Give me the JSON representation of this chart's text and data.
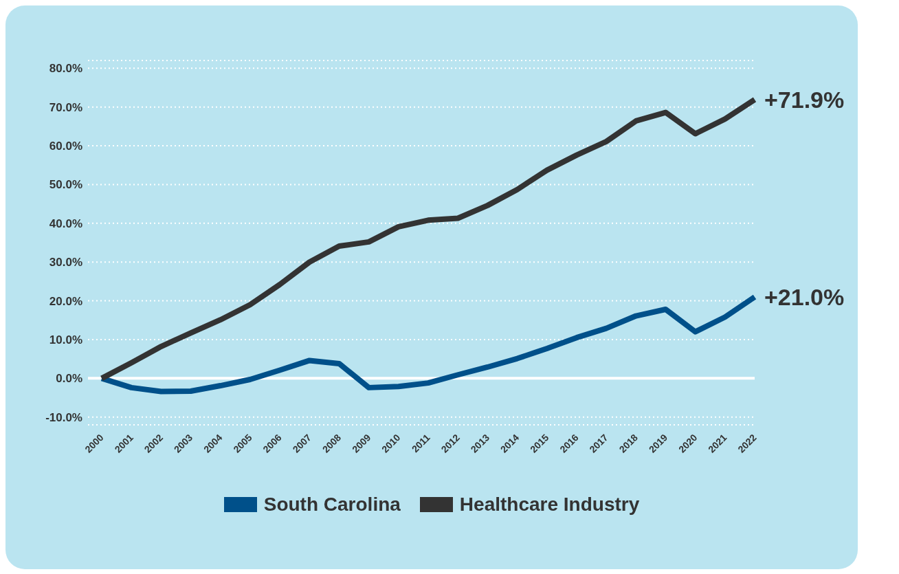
{
  "chart_data": {
    "type": "line",
    "categories": [
      "2000",
      "2001",
      "2002",
      "2003",
      "2004",
      "2005",
      "2006",
      "2007",
      "2008",
      "2009",
      "2010",
      "2011",
      "2012",
      "2013",
      "2014",
      "2015",
      "2016",
      "2017",
      "2018",
      "2019",
      "2020",
      "2021",
      "2022"
    ],
    "series": [
      {
        "name": "South Carolina",
        "color": "#00508a",
        "values": [
          0,
          -2.4,
          -3.4,
          -3.3,
          -1.9,
          -0.3,
          2.1,
          4.6,
          3.8,
          -2.4,
          -2.1,
          -1.2,
          0.9,
          2.9,
          5.1,
          7.7,
          10.5,
          12.9,
          16.1,
          17.8,
          12.0,
          15.8,
          21.0
        ]
      },
      {
        "name": "Healthcare Industry",
        "color": "#333333",
        "values": [
          0,
          4.0,
          8.2,
          11.7,
          15.1,
          19.0,
          24.2,
          30.0,
          34.1,
          35.2,
          39.1,
          40.8,
          41.3,
          44.6,
          48.7,
          53.7,
          57.6,
          61.1,
          66.4,
          68.6,
          63.1,
          66.9,
          71.9
        ]
      }
    ],
    "ylim": [
      -12,
      82
    ],
    "yticks": [
      {
        "value": -10,
        "label": "-10.0%"
      },
      {
        "value": 0,
        "label": "0.0%"
      },
      {
        "value": 10,
        "label": "10.0%"
      },
      {
        "value": 20,
        "label": "20.0%"
      },
      {
        "value": 30,
        "label": "30.0%"
      },
      {
        "value": 40,
        "label": "40.0%"
      },
      {
        "value": 50,
        "label": "50.0%"
      },
      {
        "value": 60,
        "label": "60.0%"
      },
      {
        "value": 70,
        "label": "70.0%"
      },
      {
        "value": 80,
        "label": "80.0%"
      }
    ],
    "grid": "y",
    "ref_lines": [
      {
        "axis": "y",
        "value": 0,
        "color": "#ffffff",
        "line_style": "solid"
      }
    ],
    "annotations": [
      {
        "text": "+71.9%",
        "x": "2022",
        "y": 71.9
      },
      {
        "text": "+21.0%",
        "x": "2022",
        "y": 21.0
      }
    ],
    "legend": "bottom",
    "marker": "none",
    "line_style": "solid"
  }
}
